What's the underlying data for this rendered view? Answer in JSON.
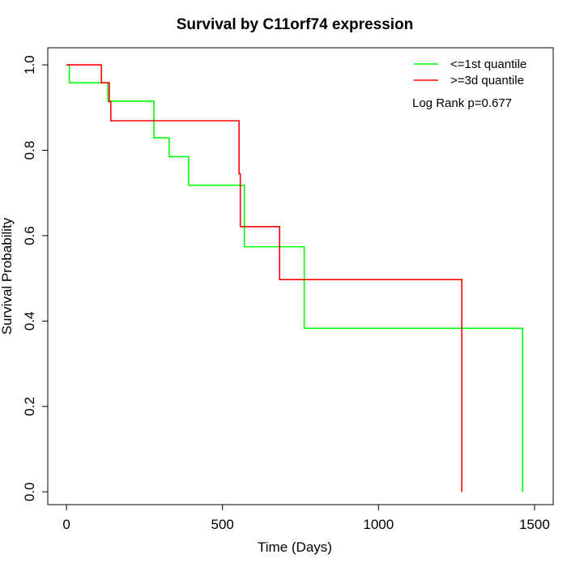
{
  "chart_data": {
    "type": "line",
    "title": "Survival by C11orf74 expression",
    "xlabel": "Time (Days)",
    "ylabel": "Survival Probability",
    "xlim": [
      -60,
      1560
    ],
    "ylim": [
      -0.03,
      1.04
    ],
    "x_ticks": [
      0,
      500,
      1000,
      1500
    ],
    "y_ticks": [
      0.0,
      0.2,
      0.4,
      0.6,
      0.8,
      1.0
    ],
    "x_tick_labels": [
      "0",
      "500",
      "1000",
      "1500"
    ],
    "y_tick_labels": [
      "0.0",
      "0.2",
      "0.4",
      "0.6",
      "0.8",
      "1.0"
    ],
    "grid": false,
    "legend_position": "top-right",
    "annotation": "Log Rank p=0.677",
    "series": [
      {
        "name": "<=1st quantile",
        "color": "#00ff00",
        "step_points": [
          [
            0,
            1.0
          ],
          [
            9,
            1.0
          ],
          [
            9,
            0.958
          ],
          [
            133,
            0.958
          ],
          [
            133,
            0.915
          ],
          [
            280,
            0.915
          ],
          [
            280,
            0.829
          ],
          [
            329,
            0.829
          ],
          [
            329,
            0.785
          ],
          [
            391,
            0.785
          ],
          [
            391,
            0.718
          ],
          [
            570,
            0.718
          ],
          [
            570,
            0.574
          ],
          [
            762,
            0.574
          ],
          [
            762,
            0.383
          ],
          [
            1462,
            0.383
          ],
          [
            1462,
            0.0
          ]
        ]
      },
      {
        "name": ">=3d quantile",
        "color": "#ff0000",
        "step_points": [
          [
            0,
            1.0
          ],
          [
            112,
            1.0
          ],
          [
            112,
            0.958
          ],
          [
            137,
            0.958
          ],
          [
            137,
            0.914
          ],
          [
            142,
            0.914
          ],
          [
            142,
            0.869
          ],
          [
            553,
            0.869
          ],
          [
            553,
            0.745
          ],
          [
            557,
            0.745
          ],
          [
            557,
            0.621
          ],
          [
            683,
            0.621
          ],
          [
            683,
            0.497
          ],
          [
            1267,
            0.497
          ],
          [
            1267,
            0.0
          ]
        ]
      }
    ]
  }
}
